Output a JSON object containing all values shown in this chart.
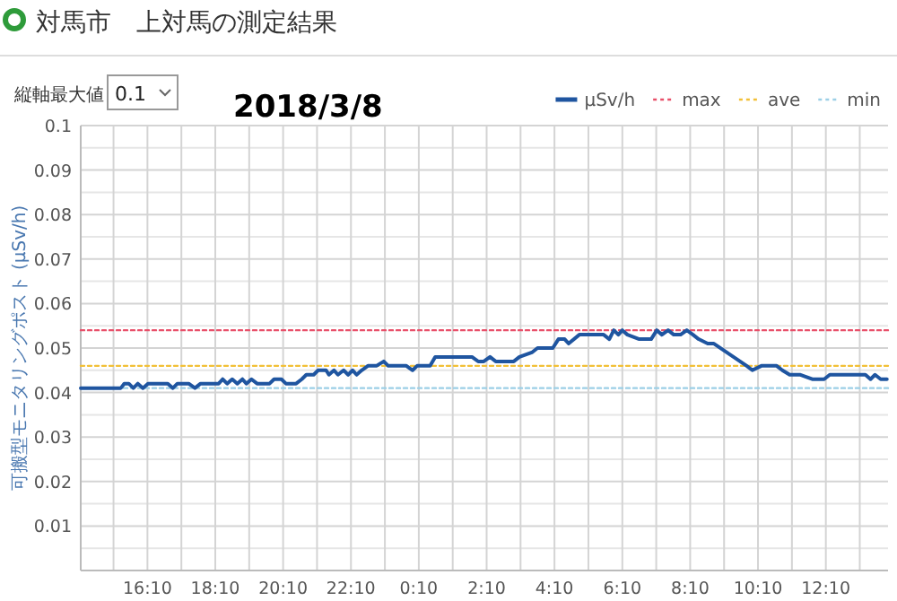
{
  "chart_data": {
    "type": "line",
    "title": "対馬市　上対馬の測定結果",
    "subtitle": "2018/3/8",
    "annotations": [
      "縦軸最大値",
      "0.1"
    ],
    "ylabel": "可搬型モニタリングポスト (μSv/h)",
    "xlim": [
      "2018-03-07T14:12",
      "2018-03-08T14:00"
    ],
    "xticks": [
      {
        "value": "2018-03-07T15:10",
        "label": null
      },
      {
        "value": "2018-03-07T16:10",
        "label": "16:10"
      },
      {
        "value": "2018-03-07T17:10",
        "label": null
      },
      {
        "value": "2018-03-07T18:10",
        "label": "18:10"
      },
      {
        "value": "2018-03-07T19:10",
        "label": null
      },
      {
        "value": "2018-03-07T20:10",
        "label": "20:10"
      },
      {
        "value": "2018-03-07T21:10",
        "label": null
      },
      {
        "value": "2018-03-07T22:10",
        "label": "22:10"
      },
      {
        "value": "2018-03-07T23:10",
        "label": null
      },
      {
        "value": "2018-03-08T00:10",
        "label": "0:10"
      },
      {
        "value": "2018-03-08T01:10",
        "label": null
      },
      {
        "value": "2018-03-08T02:10",
        "label": "2:10"
      },
      {
        "value": "2018-03-08T03:10",
        "label": null
      },
      {
        "value": "2018-03-08T04:10",
        "label": "4:10"
      },
      {
        "value": "2018-03-08T05:10",
        "label": null
      },
      {
        "value": "2018-03-08T06:10",
        "label": "6:10"
      },
      {
        "value": "2018-03-08T07:10",
        "label": null
      },
      {
        "value": "2018-03-08T08:10",
        "label": "8:10"
      },
      {
        "value": "2018-03-08T09:10",
        "label": null
      },
      {
        "value": "2018-03-08T10:10",
        "label": "10:10"
      },
      {
        "value": "2018-03-08T11:10",
        "label": null
      },
      {
        "value": "2018-03-08T12:10",
        "label": "12:10"
      },
      {
        "value": "2018-03-08T13:10",
        "label": null
      }
    ],
    "ylim": [
      0,
      0.1
    ],
    "yticks": [
      {
        "value": 0,
        "label": null
      },
      {
        "value": 0.005,
        "label": null
      },
      0.01,
      {
        "value": 0.015,
        "label": null
      },
      0.02,
      {
        "value": 0.025,
        "label": null
      },
      0.03,
      {
        "value": 0.035,
        "label": null
      },
      0.04,
      {
        "value": 0.045,
        "label": null
      },
      0.05,
      {
        "value": 0.055,
        "label": null
      },
      0.06,
      {
        "value": 0.065,
        "label": null
      },
      0.07,
      {
        "value": 0.075,
        "label": null
      },
      0.08,
      {
        "value": 0.085,
        "label": null
      },
      0.09,
      {
        "value": 0.095,
        "label": null
      },
      0.1
    ],
    "grid": true,
    "legend": "top right",
    "series": [
      {
        "name": "μSv/h",
        "color": "#1f55a0",
        "line_style": "solid",
        "x": [
          "2018-03-07T14:12",
          "2018-03-07T15:23",
          "2018-03-07T15:29",
          "2018-03-07T15:37",
          "2018-03-07T15:45",
          "2018-03-07T15:53",
          "2018-03-07T16:02",
          "2018-03-07T16:11",
          "2018-03-07T16:46",
          "2018-03-07T16:55",
          "2018-03-07T17:03",
          "2018-03-07T17:23",
          "2018-03-07T17:34",
          "2018-03-07T17:44",
          "2018-03-07T18:16",
          "2018-03-07T18:23",
          "2018-03-07T18:31",
          "2018-03-07T18:40",
          "2018-03-07T18:49",
          "2018-03-07T18:58",
          "2018-03-07T19:05",
          "2018-03-07T19:14",
          "2018-03-07T19:24",
          "2018-03-07T19:46",
          "2018-03-07T19:54",
          "2018-03-07T20:07",
          "2018-03-07T20:15",
          "2018-03-07T20:33",
          "2018-03-07T20:43",
          "2018-03-07T20:51",
          "2018-03-07T21:04",
          "2018-03-07T21:12",
          "2018-03-07T21:26",
          "2018-03-07T21:31",
          "2018-03-07T21:40",
          "2018-03-07T21:47",
          "2018-03-07T21:57",
          "2018-03-07T22:05",
          "2018-03-07T22:13",
          "2018-03-07T22:20",
          "2018-03-07T22:29",
          "2018-03-07T22:40",
          "2018-03-07T22:55",
          "2018-03-07T23:08",
          "2018-03-07T23:16",
          "2018-03-07T23:48",
          "2018-03-07T23:59",
          "2018-03-08T00:07",
          "2018-03-08T00:30",
          "2018-03-08T00:39",
          "2018-03-08T01:44",
          "2018-03-08T01:55",
          "2018-03-08T02:05",
          "2018-03-08T02:16",
          "2018-03-08T02:26",
          "2018-03-08T02:58",
          "2018-03-08T03:08",
          "2018-03-08T03:30",
          "2018-03-08T03:40",
          "2018-03-08T04:07",
          "2018-03-08T04:17",
          "2018-03-08T04:28",
          "2018-03-08T04:35",
          "2018-03-08T04:54",
          "2018-03-08T05:37",
          "2018-03-08T05:47",
          "2018-03-08T05:55",
          "2018-03-08T06:03",
          "2018-03-08T06:10",
          "2018-03-08T06:19",
          "2018-03-08T06:40",
          "2018-03-08T07:01",
          "2018-03-08T07:11",
          "2018-03-08T07:20",
          "2018-03-08T07:31",
          "2018-03-08T07:41",
          "2018-03-08T07:53",
          "2018-03-08T08:04",
          "2018-03-08T08:15",
          "2018-03-08T08:25",
          "2018-03-08T08:41",
          "2018-03-08T08:52",
          "2018-03-08T09:50",
          "2018-03-08T10:00",
          "2018-03-08T10:16",
          "2018-03-08T10:43",
          "2018-03-08T10:53",
          "2018-03-08T11:06",
          "2018-03-08T11:25",
          "2018-03-08T11:46",
          "2018-03-08T12:07",
          "2018-03-08T12:17",
          "2018-03-08T13:20",
          "2018-03-08T13:29",
          "2018-03-08T13:37",
          "2018-03-08T13:47",
          "2018-03-08T13:58"
        ],
        "values": [
          0.041,
          0.041,
          0.042,
          0.042,
          0.041,
          0.042,
          0.041,
          0.042,
          0.042,
          0.041,
          0.042,
          0.042,
          0.041,
          0.042,
          0.042,
          0.043,
          0.042,
          0.043,
          0.042,
          0.043,
          0.042,
          0.043,
          0.042,
          0.042,
          0.043,
          0.043,
          0.042,
          0.042,
          0.043,
          0.044,
          0.044,
          0.045,
          0.045,
          0.044,
          0.045,
          0.044,
          0.045,
          0.044,
          0.045,
          0.044,
          0.045,
          0.046,
          0.046,
          0.047,
          0.046,
          0.046,
          0.045,
          0.046,
          0.046,
          0.048,
          0.048,
          0.047,
          0.047,
          0.048,
          0.047,
          0.047,
          0.048,
          0.049,
          0.05,
          0.05,
          0.052,
          0.052,
          0.051,
          0.053,
          0.053,
          0.052,
          0.054,
          0.053,
          0.054,
          0.053,
          0.052,
          0.052,
          0.054,
          0.053,
          0.054,
          0.053,
          0.053,
          0.054,
          0.053,
          0.052,
          0.051,
          0.051,
          0.046,
          0.045,
          0.046,
          0.046,
          0.045,
          0.044,
          0.044,
          0.043,
          0.043,
          0.044,
          0.044,
          0.043,
          0.044,
          0.043,
          0.043
        ]
      },
      {
        "name": "max",
        "color": "#e8506a",
        "line_style": "dotted",
        "x": [
          "2018-03-07T14:12",
          "2018-03-08T14:00"
        ],
        "values": [
          0.054,
          0.054
        ]
      },
      {
        "name": "ave",
        "color": "#f2c037",
        "line_style": "dotted",
        "x": [
          "2018-03-07T14:12",
          "2018-03-08T14:00"
        ],
        "values": [
          0.046,
          0.046
        ]
      },
      {
        "name": "min",
        "color": "#9ccfe6",
        "line_style": "dotted",
        "x": [
          "2018-03-07T14:12",
          "2018-03-08T14:00"
        ],
        "values": [
          0.041,
          0.041
        ]
      }
    ]
  }
}
